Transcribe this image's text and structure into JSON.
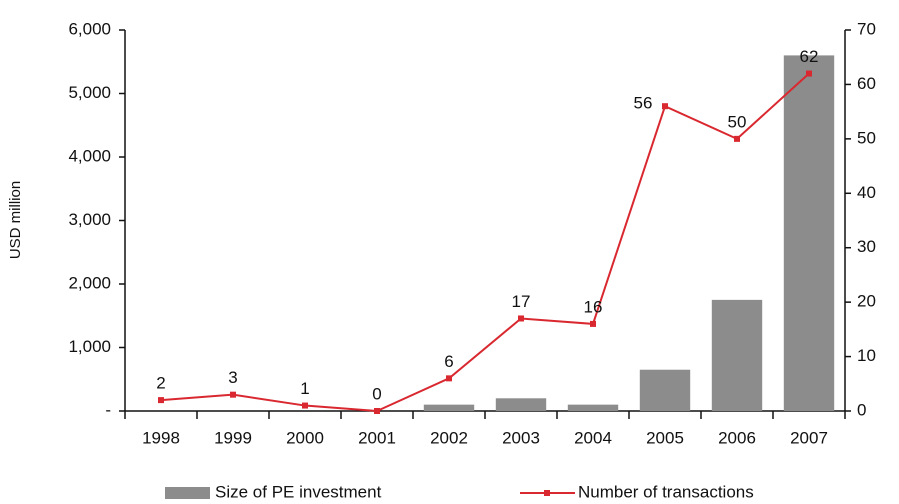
{
  "chart_data": {
    "type": "bar-line",
    "categories": [
      "1998",
      "1999",
      "2000",
      "2001",
      "2002",
      "2003",
      "2004",
      "2005",
      "2006",
      "2007"
    ],
    "y_label": "USD million",
    "series": [
      {
        "name": "Size of PE investment",
        "type": "bar",
        "color": "#8c8c8c",
        "values": [
          0,
          0,
          0,
          0,
          100,
          200,
          100,
          650,
          1750,
          5600
        ]
      },
      {
        "name": "Number of transactions",
        "type": "line",
        "axis": "y2",
        "color": "#d9282f",
        "values": [
          2,
          3,
          1,
          0,
          6,
          17,
          16,
          56,
          50,
          62
        ]
      }
    ],
    "ylim": [
      0,
      6000
    ],
    "yticks": [
      {
        "value": 0,
        "label": "-"
      },
      {
        "value": 1000,
        "label": "1,000"
      },
      {
        "value": 2000,
        "label": "2,000"
      },
      {
        "value": 3000,
        "label": "3,000"
      },
      {
        "value": 4000,
        "label": "4,000"
      },
      {
        "value": 5000,
        "label": "5,000"
      },
      {
        "value": 6000,
        "label": "6,000"
      }
    ],
    "y2lim": [
      0,
      70
    ],
    "y2ticks": [
      0,
      10,
      20,
      30,
      40,
      50,
      60,
      70
    ],
    "legend": "bottom"
  }
}
